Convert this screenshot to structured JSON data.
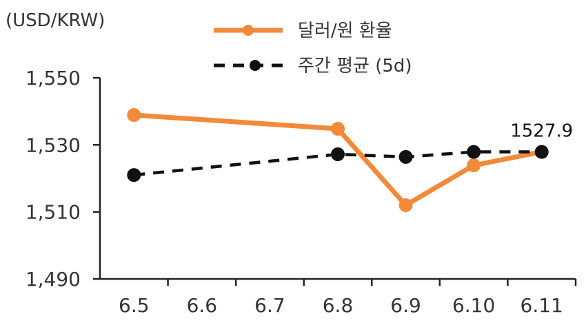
{
  "chart_data": {
    "type": "line",
    "y_unit_label": "(USD/KRW)",
    "categories": [
      "6.5",
      "6.6",
      "6.7",
      "6.8",
      "6.9",
      "6.10",
      "6.11"
    ],
    "ylim": [
      1490,
      1550
    ],
    "yticks": [
      "1,490",
      "1,510",
      "1,530",
      "1,550"
    ],
    "ytick_values": [
      1490,
      1510,
      1530,
      1550
    ],
    "series": [
      {
        "name": "달러/원 환율",
        "color": "#f28a3a",
        "style": "solid",
        "points": [
          {
            "x": "6.5",
            "y": 1538.9
          },
          {
            "x": "6.8",
            "y": 1534.8
          },
          {
            "x": "6.9",
            "y": 1512.0
          },
          {
            "x": "6.10",
            "y": 1523.9
          },
          {
            "x": "6.11",
            "y": 1527.9
          }
        ]
      },
      {
        "name": "주간 평균 (5d)",
        "color": "#111111",
        "style": "dashed",
        "points": [
          {
            "x": "6.5",
            "y": 1521.0
          },
          {
            "x": "6.8",
            "y": 1527.2
          },
          {
            "x": "6.9",
            "y": 1526.4
          },
          {
            "x": "6.10",
            "y": 1527.9
          },
          {
            "x": "6.11",
            "y": 1527.9
          }
        ]
      }
    ],
    "data_label": {
      "series": 0,
      "x": "6.11",
      "text": "1527.9"
    },
    "legend_position": "top",
    "grid": false
  }
}
